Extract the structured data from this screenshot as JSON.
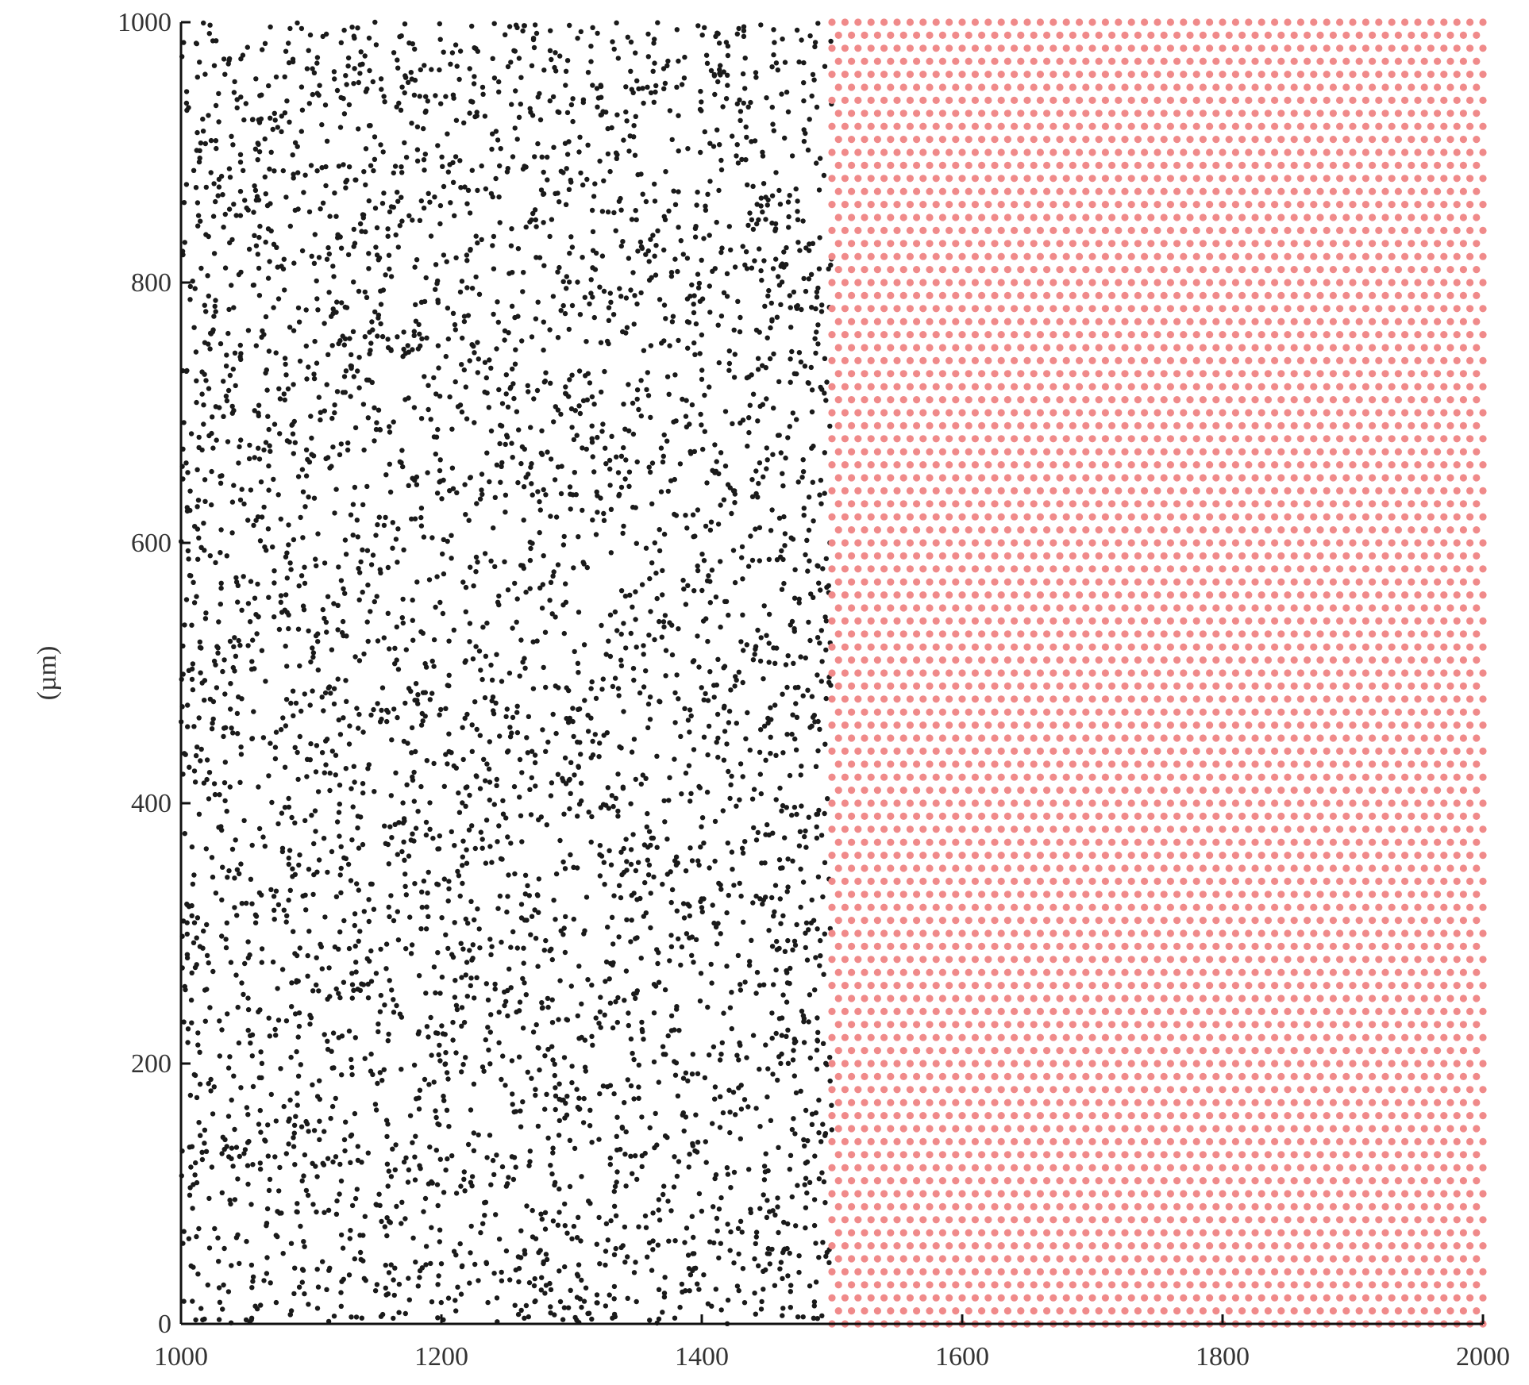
{
  "chart_data": {
    "type": "scatter",
    "title": "",
    "xlabel": "",
    "ylabel": "(µm)",
    "xlim": [
      1000,
      2000
    ],
    "ylim": [
      0,
      1000
    ],
    "x_ticks": [
      1000,
      1200,
      1400,
      1600,
      1800,
      2000
    ],
    "y_ticks": [
      0,
      200,
      400,
      600,
      800,
      1000
    ],
    "x_tick_labels": [
      "1000",
      "1200",
      "1400",
      "1600",
      "1800",
      "2000"
    ],
    "y_tick_labels": [
      "0",
      "200",
      "400",
      "600",
      "800",
      "1000"
    ],
    "grid": false,
    "legend": "none",
    "series": [
      {
        "marker": "dot",
        "color": "#1a1a1a",
        "distribution": "random",
        "x_range": [
          1000,
          1500
        ],
        "y_range": [
          0,
          1000
        ],
        "approx_count": 4500
      },
      {
        "marker": "dot",
        "color": "#f08a8a",
        "distribution": "lattice",
        "x_range": [
          1500,
          2000
        ],
        "y_range": [
          0,
          1000
        ],
        "spacing": 10
      }
    ]
  }
}
